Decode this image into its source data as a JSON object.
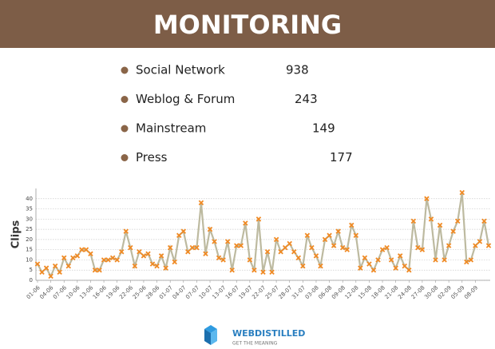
{
  "header": {
    "title": "MONITORING"
  },
  "items": [
    {
      "label": "Social Network",
      "value": 938
    },
    {
      "label": "Weblog & Forum",
      "value": 243
    },
    {
      "label": "Mainstream",
      "value": 149
    },
    {
      "label": "Press",
      "value": 177
    }
  ],
  "chart_data": {
    "type": "line",
    "ylabel": "Clips",
    "categories": [
      "01-06",
      null,
      null,
      "04-06",
      null,
      null,
      "07-06",
      null,
      null,
      "10-06",
      null,
      null,
      "13-06",
      null,
      null,
      "16-06",
      null,
      null,
      "19-06",
      null,
      null,
      "22-06",
      null,
      null,
      "25-06",
      null,
      null,
      "28-06",
      null,
      null,
      "01-07",
      null,
      null,
      "04-07",
      null,
      null,
      "07-07",
      null,
      null,
      "10-07",
      null,
      null,
      "13-07",
      null,
      null,
      "16-07",
      null,
      null,
      "19-07",
      null,
      null,
      "22-07",
      null,
      null,
      "25-07",
      null,
      null,
      "28-07",
      null,
      null,
      "31-07",
      null,
      null,
      "03-08",
      null,
      null,
      "06-08",
      null,
      null,
      "09-08",
      null,
      null,
      "12-08",
      null,
      null,
      "15-08",
      null,
      null,
      "18-08",
      null,
      null,
      "21-08",
      null,
      null,
      "24-08",
      null,
      null,
      "27-08",
      null,
      null,
      "30-08",
      null,
      null,
      "02-09",
      null,
      null,
      "05-09",
      null,
      null,
      "08-09",
      null,
      null,
      null
    ],
    "series": [
      {
        "color": "#bdbaa0",
        "marker_color": "#f08a24",
        "values": [
          8,
          4,
          6,
          2,
          7,
          4,
          11,
          7,
          11,
          12,
          15,
          15,
          13,
          5,
          5,
          10,
          10,
          11,
          10,
          14,
          24,
          16,
          7,
          14,
          12,
          13,
          8,
          7,
          12,
          6,
          16,
          9,
          22,
          24,
          14,
          16,
          16,
          38,
          13,
          25,
          19,
          11,
          10,
          19,
          5,
          17,
          17,
          28,
          10,
          5,
          30,
          4,
          14,
          4,
          20,
          14,
          16,
          18,
          14,
          11,
          7,
          22,
          16,
          12,
          7,
          20,
          22,
          17,
          24,
          16,
          15,
          27,
          22,
          6,
          11,
          8,
          5,
          10,
          15,
          16,
          10,
          6,
          12,
          7,
          5,
          29,
          16,
          15,
          40,
          30,
          10,
          27,
          10,
          17,
          24,
          29,
          43,
          9,
          10,
          17,
          19,
          29,
          17
        ]
      }
    ],
    "ylim": [
      0,
      45
    ],
    "yticks": [
      0,
      5,
      10,
      15,
      20,
      25,
      30,
      35,
      40
    ],
    "grid": true
  },
  "footer": {
    "brand": "WEBDISTILLED",
    "tagline": "GET THE MEANING"
  }
}
